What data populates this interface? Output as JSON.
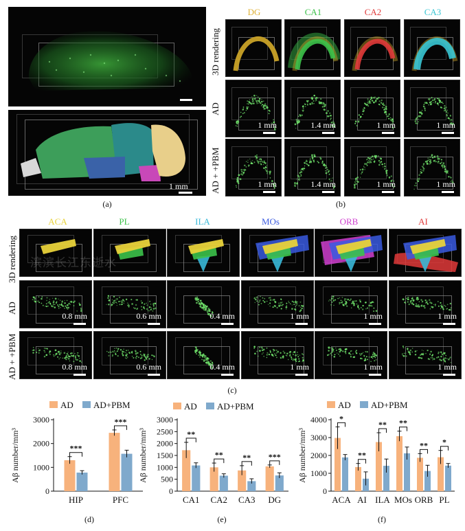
{
  "panel_a": {
    "label": "(a)",
    "scale_label": "1 mm"
  },
  "panel_b": {
    "label": "(b)",
    "columns": [
      {
        "name": "DG",
        "color": "#e0b33a"
      },
      {
        "name": "CA1",
        "color": "#3cc24a"
      },
      {
        "name": "CA2",
        "color": "#e03a3a"
      },
      {
        "name": "CA3",
        "color": "#38c6d4"
      }
    ],
    "rows": [
      "3D rendering",
      "AD",
      "AD + +PBM"
    ],
    "scales": [
      "1 mm",
      "1.4 mm",
      "1 mm",
      "1 mm"
    ]
  },
  "panel_c": {
    "label": "(c)",
    "columns": [
      {
        "name": "ACA",
        "color": "#e8d23a"
      },
      {
        "name": "PL",
        "color": "#3cc24a"
      },
      {
        "name": "ILA",
        "color": "#38b8d8"
      },
      {
        "name": "MOs",
        "color": "#3a5ae0"
      },
      {
        "name": "ORB",
        "color": "#d040d0"
      },
      {
        "name": "AI",
        "color": "#e03a3a"
      }
    ],
    "rows": [
      "3D rendering",
      "AD",
      "AD + +PBM"
    ],
    "scales": [
      "0.8 mm",
      "0.6 mm",
      "0.4 mm",
      "1 mm",
      "1 mm",
      "1 mm"
    ],
    "watermark": "滨滨长江东逝水"
  },
  "colors": {
    "ad": "#f7b27c",
    "pbm": "#7fa9cc"
  },
  "chart_data": [
    {
      "type": "bar",
      "panel": "(d)",
      "title": "",
      "xlabel": "",
      "ylabel": "Aβ number/mm³",
      "ylim": [
        0,
        3000
      ],
      "yticks": [
        0,
        1000,
        2000,
        3000
      ],
      "categories": [
        "HIP",
        "PFC"
      ],
      "legend": [
        "AD",
        "AD+PBM"
      ],
      "series": [
        {
          "name": "AD",
          "values": [
            1300,
            2450
          ],
          "errors": [
            150,
            120
          ]
        },
        {
          "name": "AD+PBM",
          "values": [
            780,
            1570
          ],
          "errors": [
            80,
            150
          ]
        }
      ],
      "significance": [
        "***",
        "***"
      ]
    },
    {
      "type": "bar",
      "panel": "(e)",
      "title": "",
      "xlabel": "",
      "ylabel": "Aβ number/mm³",
      "ylim": [
        0,
        3000
      ],
      "yticks": [
        0,
        500,
        1000,
        1500,
        2000,
        2500,
        3000
      ],
      "categories": [
        "CA1",
        "CA2",
        "CA3",
        "DG"
      ],
      "legend": [
        "AD",
        "AD+PBM"
      ],
      "series": [
        {
          "name": "AD",
          "values": [
            1720,
            1000,
            870,
            1040
          ],
          "errors": [
            330,
            180,
            200,
            60
          ]
        },
        {
          "name": "AD+PBM",
          "values": [
            1080,
            650,
            420,
            660
          ],
          "errors": [
            110,
            80,
            100,
            110
          ]
        }
      ],
      "significance": [
        "**",
        "**",
        "**",
        "***"
      ]
    },
    {
      "type": "bar",
      "panel": "(f)",
      "title": "",
      "xlabel": "",
      "ylabel": "Aβ number/mm³",
      "ylim": [
        0,
        4000
      ],
      "yticks": [
        0,
        1000,
        2000,
        3000,
        4000
      ],
      "categories": [
        "ACA",
        "AI",
        "ILA",
        "MOs",
        "ORB",
        "PL"
      ],
      "legend": [
        "AD",
        "AD+PBM"
      ],
      "series": [
        {
          "name": "AD",
          "values": [
            2980,
            1350,
            2750,
            3080,
            1870,
            1900
          ],
          "errors": [
            620,
            200,
            520,
            280,
            230,
            380
          ]
        },
        {
          "name": "AD+PBM",
          "values": [
            1890,
            700,
            1420,
            2120,
            1130,
            1430
          ],
          "errors": [
            160,
            380,
            380,
            350,
            320,
            120
          ]
        }
      ],
      "significance": [
        "*",
        "**",
        "**",
        "**",
        "**",
        "*"
      ]
    }
  ]
}
